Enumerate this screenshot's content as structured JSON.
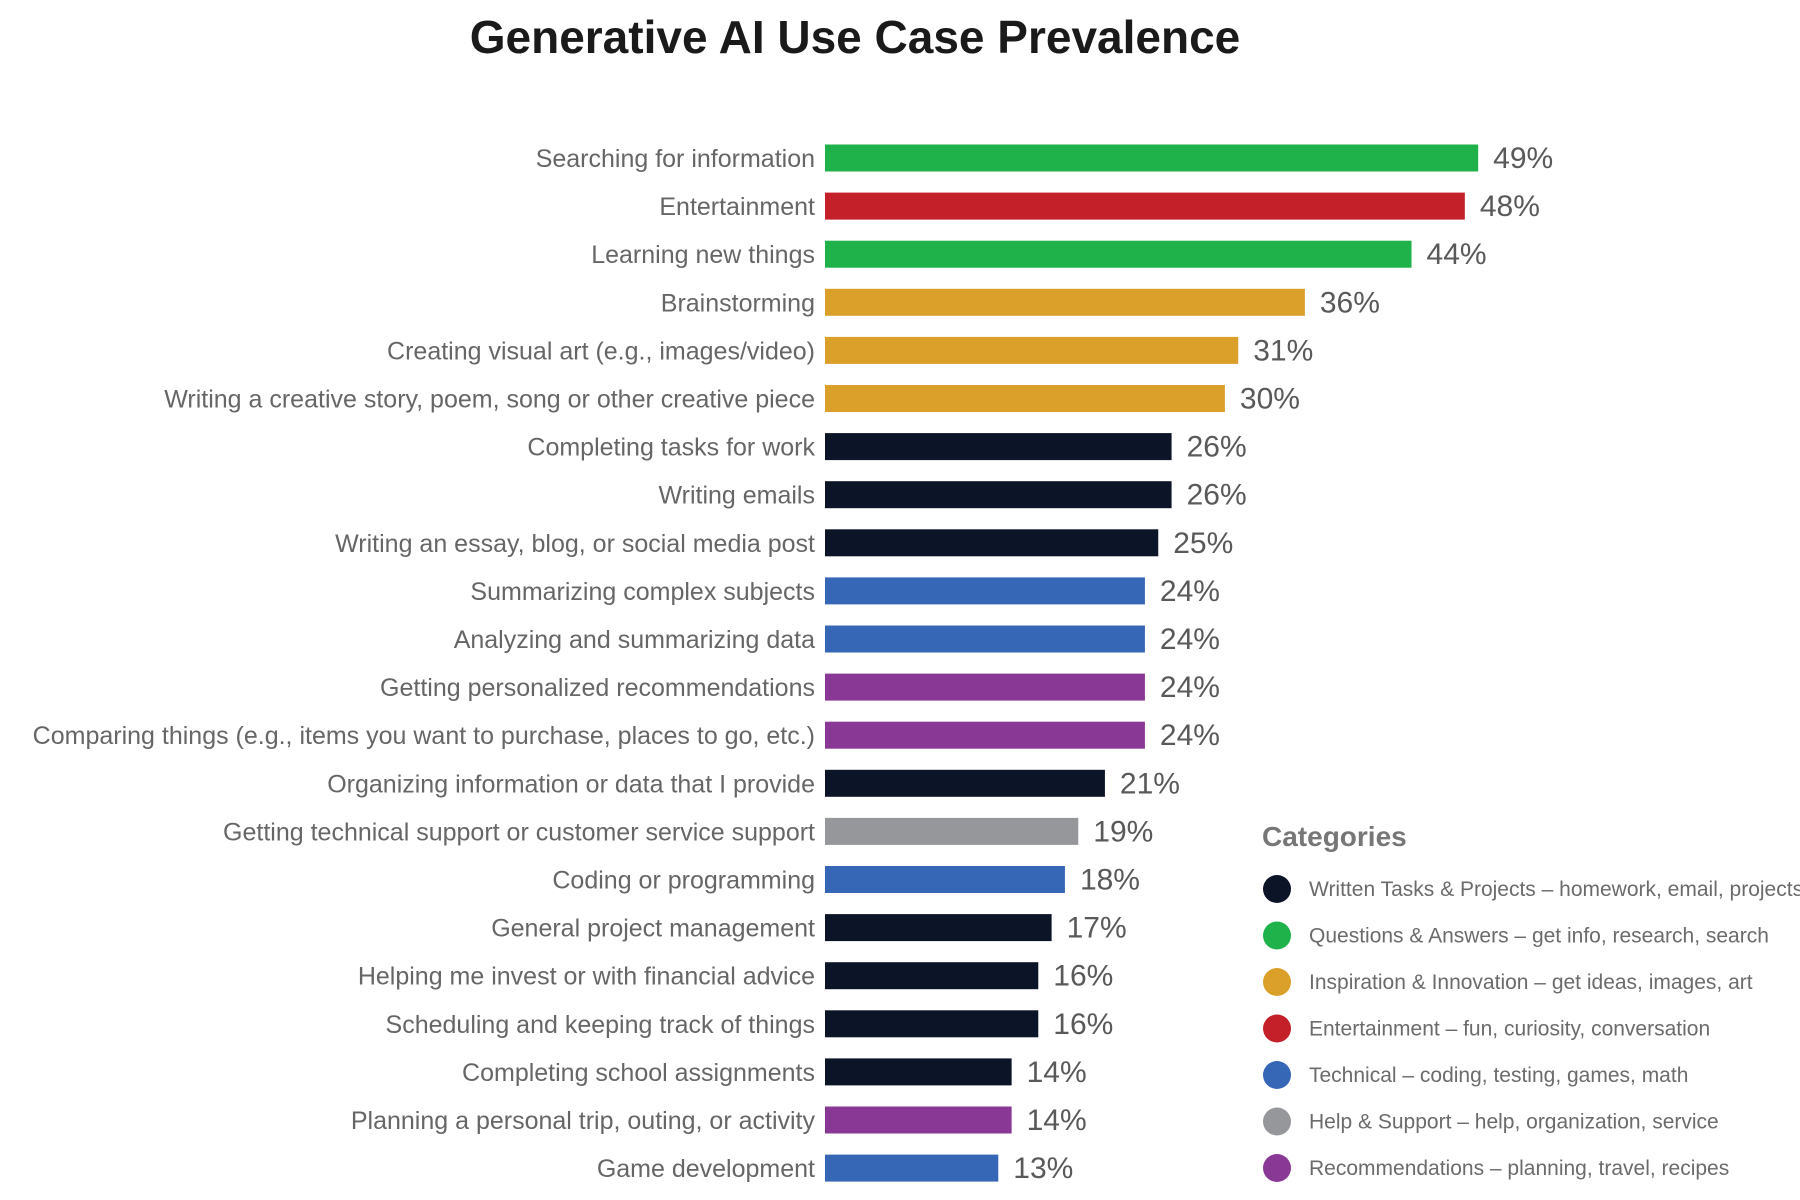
{
  "colors": {
    "written": "#0c1428",
    "qa": "#1fb14a",
    "inspiration": "#dba02a",
    "entertainment": "#c4202a",
    "technical": "#3667b7",
    "help": "#96979b",
    "recommendations": "#8a3896"
  },
  "chart_data": {
    "type": "bar",
    "orientation": "horizontal",
    "title": "Generative AI Use Case Prevalence",
    "value_suffix": "%",
    "xlim": [
      0,
      50
    ],
    "grid": false,
    "legend_position": "bottom-right",
    "categories": [
      "Searching for information",
      "Entertainment",
      "Learning new things",
      "Brainstorming",
      "Creating visual art (e.g., images/video)",
      "Writing a creative story, poem, song or other creative piece",
      "Completing tasks for work",
      "Writing emails",
      "Writing an essay, blog, or social media post",
      "Summarizing complex subjects",
      "Analyzing and summarizing data",
      "Getting personalized recommendations",
      "Comparing things (e.g., items you want to purchase, places to go, etc.)",
      "Organizing information or data that I provide",
      "Getting technical support or customer service support",
      "Coding or programming",
      "General project management",
      "Helping me invest or with financial advice",
      "Scheduling and keeping track of things",
      "Completing school assignments",
      "Planning a personal trip, outing, or activity",
      "Game development"
    ],
    "values": [
      49,
      48,
      44,
      36,
      31,
      30,
      26,
      26,
      25,
      24,
      24,
      24,
      24,
      21,
      19,
      18,
      17,
      16,
      16,
      14,
      14,
      13
    ],
    "value_labels": [
      "49%",
      "48%",
      "44%",
      "36%",
      "31%",
      "30%",
      "26%",
      "26%",
      "25%",
      "24%",
      "24%",
      "24%",
      "24%",
      "21%",
      "19%",
      "18%",
      "17%",
      "16%",
      "16%",
      "14%",
      "14%",
      "13%"
    ],
    "bar_category": [
      "qa",
      "entertainment",
      "qa",
      "inspiration",
      "inspiration",
      "inspiration",
      "written",
      "written",
      "written",
      "technical",
      "technical",
      "recommendations",
      "recommendations",
      "written",
      "help",
      "technical",
      "written",
      "written",
      "written",
      "written",
      "recommendations",
      "technical"
    ],
    "legend": {
      "title": "Categories",
      "entries": [
        {
          "key": "written",
          "label": "Written Tasks & Projects – homework, email, projects"
        },
        {
          "key": "qa",
          "label": "Questions & Answers – get info, research, search"
        },
        {
          "key": "inspiration",
          "label": "Inspiration & Innovation – get ideas, images, art"
        },
        {
          "key": "entertainment",
          "label": "Entertainment – fun, curiosity, conversation"
        },
        {
          "key": "technical",
          "label": "Technical – coding, testing, games, math"
        },
        {
          "key": "help",
          "label": "Help & Support – help, organization, service"
        },
        {
          "key": "recommendations",
          "label": "Recommendations – planning, travel, recipes"
        }
      ]
    }
  }
}
